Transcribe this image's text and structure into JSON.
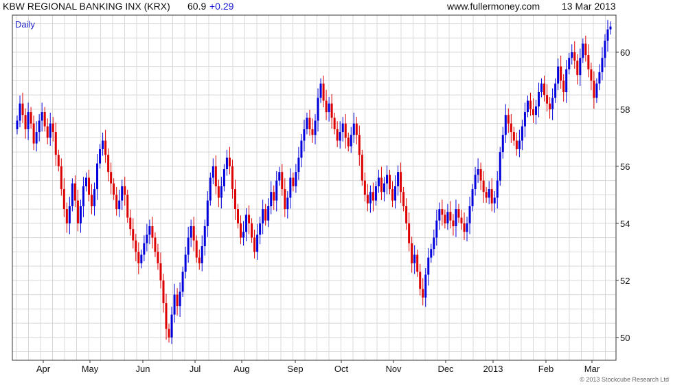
{
  "header": {
    "title": "KBW REGIONAL BANKING INX (KRX)",
    "last_value": "60.9",
    "change": "+0.29",
    "source": "www.fullermoney.com",
    "date": "13 Mar 2013"
  },
  "colors": {
    "up": "#0000dd",
    "down": "#dd0000",
    "grid": "#d8d8d8",
    "change_text": "#1a1ad6",
    "period_text": "#2222cc"
  },
  "footer": {
    "copyright": "© 2013 Stockcube Research Ltd"
  },
  "chart_data": {
    "type": "candlestick",
    "period_label": "Daily",
    "y_axis": {
      "side": "right",
      "ylim": [
        49.2,
        61.3
      ],
      "ticks": [
        50,
        52,
        54,
        56,
        58,
        60
      ]
    },
    "x_axis": {
      "labels": [
        "Apr",
        "May",
        "Jun",
        "Jul",
        "Aug",
        "Sep",
        "Oct",
        "Nov",
        "Dec",
        "2013",
        "Feb",
        "Mar"
      ]
    },
    "grid": true,
    "closes": [
      57.6,
      58.2,
      57.8,
      57.3,
      57.9,
      57.5,
      56.8,
      57.2,
      57.6,
      57.9,
      57.4,
      57.0,
      57.5,
      57.2,
      56.4,
      56.0,
      55.2,
      54.5,
      54.0,
      54.6,
      55.4,
      54.8,
      54.0,
      54.6,
      55.3,
      55.6,
      55.0,
      54.6,
      55.2,
      56.1,
      56.6,
      56.9,
      56.4,
      55.8,
      55.4,
      55.0,
      54.5,
      54.8,
      55.3,
      55.0,
      54.2,
      53.8,
      53.4,
      53.0,
      52.6,
      52.9,
      53.3,
      53.6,
      53.9,
      53.5,
      53.0,
      52.6,
      52.0,
      51.2,
      50.3,
      50.0,
      50.8,
      51.5,
      51.1,
      51.6,
      52.3,
      52.9,
      53.5,
      53.9,
      53.4,
      52.8,
      52.6,
      53.2,
      53.9,
      54.8,
      55.6,
      56.0,
      55.3,
      54.9,
      55.3,
      55.9,
      56.3,
      56.0,
      55.2,
      54.5,
      54.0,
      53.5,
      53.7,
      54.3,
      54.0,
      53.5,
      53.0,
      53.6,
      54.0,
      54.5,
      54.1,
      54.6,
      55.1,
      54.8,
      55.5,
      55.8,
      55.2,
      54.5,
      54.9,
      55.6,
      55.3,
      55.8,
      56.3,
      56.9,
      57.3,
      57.7,
      57.3,
      57.1,
      57.6,
      58.4,
      58.9,
      58.3,
      57.9,
      58.2,
      57.7,
      57.3,
      56.9,
      57.2,
      57.5,
      57.0,
      56.7,
      57.1,
      57.5,
      57.1,
      56.4,
      55.5,
      55.0,
      54.7,
      55.1,
      54.8,
      55.3,
      55.6,
      55.1,
      55.4,
      55.7,
      55.2,
      54.8,
      55.3,
      55.8,
      55.1,
      54.6,
      54.0,
      53.3,
      52.6,
      52.9,
      52.3,
      51.7,
      51.4,
      52.2,
      52.8,
      53.1,
      53.5,
      54.1,
      54.5,
      54.3,
      54.0,
      54.4,
      54.1,
      53.9,
      54.5,
      54.2,
      54.0,
      53.7,
      54.0,
      54.6,
      55.2,
      55.7,
      55.9,
      55.5,
      55.1,
      54.9,
      55.2,
      54.7,
      54.9,
      55.5,
      56.5,
      57.1,
      57.8,
      57.5,
      57.2,
      56.9,
      56.6,
      56.9,
      57.4,
      57.9,
      58.3,
      58.0,
      57.8,
      58.1,
      58.6,
      58.9,
      58.5,
      58.2,
      58.0,
      58.4,
      58.9,
      59.5,
      59.0,
      58.6,
      59.4,
      59.8,
      60.0,
      59.7,
      59.2,
      59.8,
      60.3,
      59.9,
      59.4,
      59.0,
      58.4,
      58.9,
      59.3,
      59.8,
      60.4,
      60.8,
      60.9
    ]
  }
}
